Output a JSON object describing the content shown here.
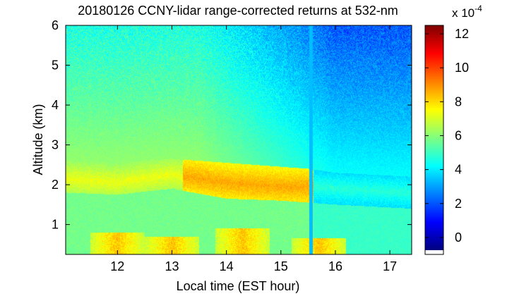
{
  "chart_data": {
    "type": "heatmap",
    "title": "20180126 CCNY-lidar range-corrected returns at 532-nm",
    "xlabel": "Local time (EST hour)",
    "ylabel": "Altitude (km)",
    "xlim": [
      11.05,
      17.4
    ],
    "ylim": [
      0.25,
      6
    ],
    "x_ticks": [
      12,
      13,
      14,
      15,
      16,
      17
    ],
    "y_ticks": [
      1,
      2,
      3,
      4,
      5,
      6
    ],
    "colorbar": {
      "multiplier_label": "x 10",
      "multiplier_exponent": "-4",
      "range": [
        -1,
        12.5
      ],
      "ticks": [
        0,
        2,
        4,
        6,
        8,
        10,
        12
      ],
      "colormap": "jet"
    },
    "features": {
      "gap_time": 15.55,
      "boundary_layer": [
        {
          "time": 11.05,
          "top": 2.6,
          "bottom": 1.8,
          "peak_alt": 2.15
        },
        {
          "time": 12.0,
          "top": 2.55,
          "bottom": 1.75,
          "peak_alt": 2.05
        },
        {
          "time": 13.0,
          "top": 2.65,
          "bottom": 1.9,
          "peak_alt": 2.25
        },
        {
          "time": 14.0,
          "top": 2.55,
          "bottom": 1.65,
          "peak_alt": 2.05
        },
        {
          "time": 15.0,
          "top": 2.45,
          "bottom": 1.6,
          "peak_alt": 1.95
        },
        {
          "time": 15.5,
          "top": 2.4,
          "bottom": 1.55,
          "peak_alt": 1.95
        },
        {
          "time": 16.0,
          "top": 2.3,
          "bottom": 1.5,
          "peak_alt": 1.9
        },
        {
          "time": 17.4,
          "top": 2.2,
          "bottom": 1.4,
          "peak_alt": 1.8
        }
      ],
      "plumes": [
        {
          "time": 12.0,
          "top": 0.8
        },
        {
          "time": 13.0,
          "top": 0.7
        },
        {
          "time": 14.3,
          "top": 0.9
        },
        {
          "time": 15.7,
          "top": 0.65
        }
      ]
    }
  }
}
